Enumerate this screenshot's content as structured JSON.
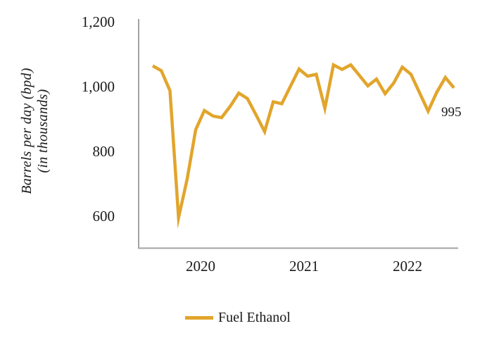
{
  "figure": {
    "y_axis": {
      "title_line1": "Barrels per day (bpd)",
      "title_line2": "(in thousands)",
      "ticks": [
        "1,200",
        "1,000",
        "800",
        "600"
      ]
    },
    "x_axis": {
      "ticks": [
        "2020",
        "2021",
        "2022"
      ]
    },
    "legend": {
      "label": "Fuel Ethanol"
    },
    "end_label": "995"
  },
  "chart_data": {
    "type": "line",
    "title": "",
    "xlabel": "",
    "ylabel": "Barrels per day (bpd) (in thousands)",
    "ylim": [
      500,
      1200
    ],
    "y_ticks": [
      600,
      800,
      1000,
      1200
    ],
    "x_tick_labels": [
      "2020",
      "2021",
      "2022"
    ],
    "grid": false,
    "legend_position": "bottom-center",
    "axis_color": "#A3A3A3",
    "series": [
      {
        "name": "Fuel Ethanol",
        "color": "#E2A52B",
        "x": [
          "2020-01",
          "2020-02",
          "2020-03",
          "2020-04",
          "2020-05",
          "2020-06",
          "2020-07",
          "2020-08",
          "2020-09",
          "2020-10",
          "2020-11",
          "2020-12",
          "2021-01",
          "2021-02",
          "2021-03",
          "2021-04",
          "2021-05",
          "2021-06",
          "2021-07",
          "2021-08",
          "2021-09",
          "2021-10",
          "2021-11",
          "2021-12",
          "2022-01",
          "2022-02",
          "2022-03",
          "2022-04",
          "2022-05",
          "2022-06",
          "2022-07",
          "2022-08",
          "2022-09",
          "2022-10",
          "2022-11",
          "2022-12"
        ],
        "values": [
          1063,
          1048,
          986,
          594,
          713,
          866,
          925,
          908,
          903,
          938,
          979,
          962,
          912,
          860,
          952,
          946,
          1000,
          1053,
          1031,
          1037,
          932,
          1066,
          1052,
          1066,
          1034,
          1001,
          1022,
          977,
          1010,
          1059,
          1037,
          980,
          923,
          981,
          1027,
          995
        ],
        "last_point_label": "995"
      }
    ]
  }
}
